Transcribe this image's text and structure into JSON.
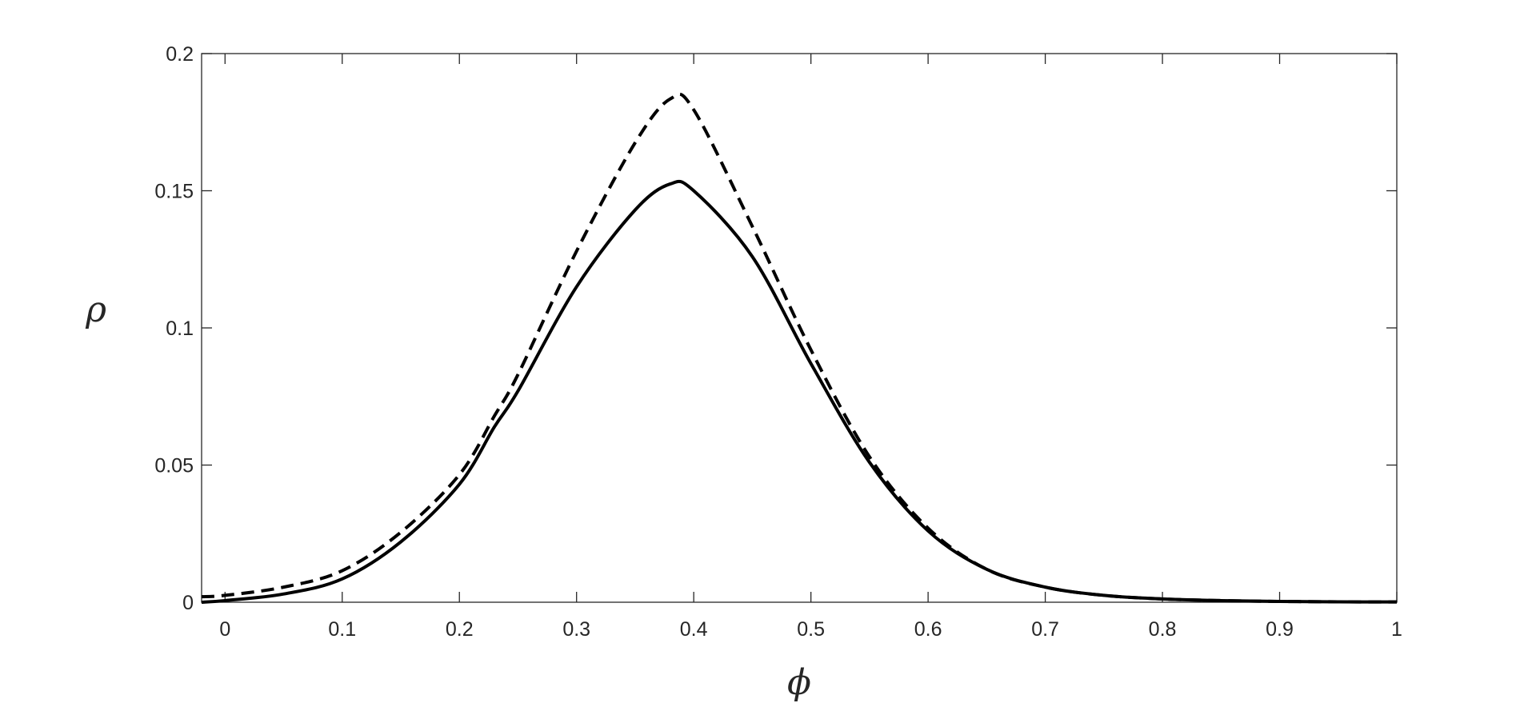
{
  "chart_data": {
    "type": "line",
    "title": "",
    "xlabel": "ϕ",
    "ylabel": "ρ",
    "xlim": [
      -0.02,
      1.0
    ],
    "ylim": [
      0,
      0.2
    ],
    "grid": false,
    "legend": "none",
    "xticks": [
      "0",
      "0.1",
      "0.2",
      "0.3",
      "0.4",
      "0.5",
      "0.6",
      "0.7",
      "0.8",
      "0.9",
      "1"
    ],
    "yticks": [
      "0",
      "0.05",
      "0.1",
      "0.15",
      "0.2"
    ],
    "x": [
      -0.02,
      0.0,
      0.05,
      0.1,
      0.15,
      0.2,
      0.23,
      0.25,
      0.3,
      0.35,
      0.38,
      0.4,
      0.45,
      0.5,
      0.55,
      0.6,
      0.65,
      0.7,
      0.75,
      0.8,
      0.85,
      0.9,
      0.95,
      1.0
    ],
    "series": [
      {
        "style": "solid",
        "color": "#000000",
        "values": [
          0.0,
          0.0006,
          0.003,
          0.0085,
          0.022,
          0.043,
          0.064,
          0.077,
          0.115,
          0.143,
          0.1525,
          0.15,
          0.126,
          0.087,
          0.051,
          0.026,
          0.012,
          0.0055,
          0.0025,
          0.0012,
          0.0006,
          0.0003,
          0.00015,
          0.0001
        ]
      },
      {
        "style": "dashed",
        "color": "#000000",
        "values": [
          0.002,
          0.0025,
          0.0055,
          0.0115,
          0.0255,
          0.0465,
          0.068,
          0.083,
          0.128,
          0.1675,
          0.1835,
          0.1795,
          0.137,
          0.092,
          0.053,
          0.027,
          0.012,
          0.0055,
          0.0025,
          0.0012,
          0.0006,
          0.0003,
          0.00015,
          0.0001
        ]
      }
    ]
  },
  "colors": {
    "axis": "#262626",
    "line": "#000000",
    "background": "#ffffff"
  }
}
